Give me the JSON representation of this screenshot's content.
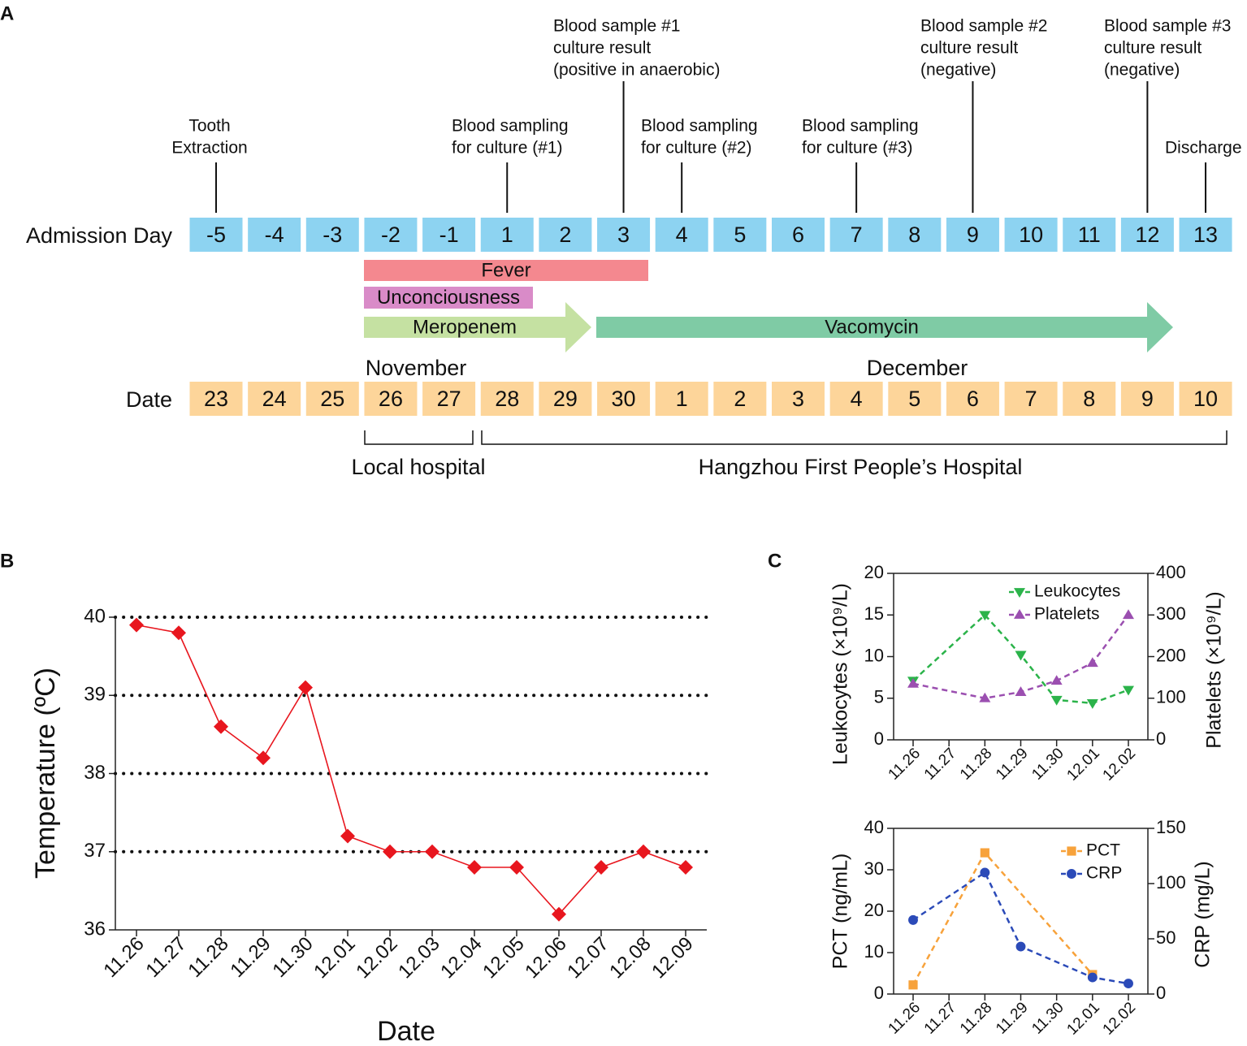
{
  "panel_a": {
    "panel_label": "A",
    "events": [
      {
        "lines": [
          "Tooth",
          "Extraction"
        ]
      },
      {
        "lines": [
          "Blood sampling",
          "for culture (#1)"
        ]
      },
      {
        "lines": [
          "Blood sample #1",
          "culture result",
          "(positive in anaerobic)"
        ]
      },
      {
        "lines": [
          "Blood sampling",
          "for culture (#2)"
        ]
      },
      {
        "lines": [
          "Blood sampling",
          "for culture (#3)"
        ]
      },
      {
        "lines": [
          "Blood sample #2",
          "culture result",
          "(negative)"
        ]
      },
      {
        "lines": [
          "Blood sample #3",
          "culture result",
          "(negative)"
        ]
      },
      {
        "lines": [
          "Discharge"
        ]
      }
    ],
    "admission_label": "Admission Day",
    "admission_days": [
      "-5",
      "-4",
      "-3",
      "-2",
      "-1",
      "1",
      "2",
      "3",
      "4",
      "5",
      "6",
      "7",
      "8",
      "9",
      "10",
      "11",
      "12",
      "13"
    ],
    "bars": [
      "Fever",
      "Unconciousness",
      "Meropenem",
      "Vacomycin"
    ],
    "months": [
      "November",
      "December"
    ],
    "date_label": "Date",
    "dates": [
      "23",
      "24",
      "25",
      "26",
      "27",
      "28",
      "29",
      "30",
      "1",
      "2",
      "3",
      "4",
      "5",
      "6",
      "7",
      "8",
      "9",
      "10"
    ],
    "hospitals": [
      "Local hospital",
      "Hangzhou First People’s Hospital"
    ]
  },
  "chart_data": [
    {
      "type": "line",
      "panel_label": "B",
      "x_label": "Date",
      "y_label": "Temperature (ºC)",
      "categories": [
        "11.26",
        "11.27",
        "11.28",
        "11.29",
        "11.30",
        "12.01",
        "12.02",
        "12.03",
        "12.04",
        "12.05",
        "12.06",
        "12.07",
        "12.08",
        "12.09"
      ],
      "series": [
        {
          "color": "#e8161e",
          "marker": "diamond",
          "linestyle": "solid",
          "x": [
            "11.26",
            "11.27",
            "11.28",
            "11.29",
            "11.30",
            "12.01",
            "12.02",
            "12.03",
            "12.04",
            "12.05",
            "12.06",
            "12.07",
            "12.08",
            "12.09"
          ],
          "values": [
            39.9,
            39.8,
            38.6,
            38.2,
            39.1,
            37.2,
            37.0,
            37.0,
            36.8,
            36.8,
            36.2,
            36.8,
            37.0,
            36.8
          ]
        }
      ],
      "ylim": [
        36,
        40
      ],
      "yticks": [
        36,
        37,
        38,
        39,
        40
      ],
      "grid": true
    },
    {
      "type": "line",
      "panel_label": "C",
      "y_label": "Leukocytes (×10⁹/L)",
      "y2_label": "Platelets (×10⁹/L)",
      "categories": [
        "11.26",
        "11.27",
        "11.28",
        "11.29",
        "11.30",
        "12.01",
        "12.02"
      ],
      "series": [
        {
          "name": "Leukocytes",
          "color": "#2bb34a",
          "marker": "triangle-down",
          "linestyle": "dashed",
          "x": [
            "11.26",
            "11.28",
            "11.29",
            "11.30",
            "12.01",
            "12.02"
          ],
          "values": [
            7.1,
            15.0,
            10.2,
            4.8,
            4.4,
            6.0
          ]
        },
        {
          "name": "Platelets",
          "color": "#9b4fb0",
          "marker": "triangle-up",
          "linestyle": "dashed",
          "axis": "y2",
          "x": [
            "11.26",
            "11.28",
            "11.29",
            "11.30",
            "12.01",
            "12.02"
          ],
          "values": [
            135,
            100,
            115,
            142,
            185,
            300
          ]
        }
      ],
      "ylim": [
        0,
        20
      ],
      "yticks": [
        0,
        5,
        10,
        15,
        20
      ],
      "y2lim": [
        0,
        400
      ],
      "y2ticks": [
        0,
        100,
        200,
        300,
        400
      ],
      "grid": false,
      "legend": "upper right"
    },
    {
      "type": "line",
      "y_label": "PCT (ng/mL)",
      "y2_label": "CRP (mg/L)",
      "categories": [
        "11.26",
        "11.27",
        "11.28",
        "11.29",
        "11.30",
        "12.01",
        "12.02"
      ],
      "series": [
        {
          "name": "PCT",
          "color": "#f7a23b",
          "marker": "square",
          "linestyle": "dashed",
          "x": [
            "11.26",
            "11.28",
            "12.01"
          ],
          "values": [
            2.2,
            34.1,
            4.7
          ]
        },
        {
          "name": "CRP",
          "color": "#2b4ab8",
          "marker": "circle",
          "linestyle": "dashed",
          "axis": "y2",
          "x": [
            "11.26",
            "11.28",
            "11.29",
            "12.01",
            "12.02"
          ],
          "values": [
            67,
            110,
            43,
            15,
            9.5
          ]
        }
      ],
      "ylim": [
        0,
        40
      ],
      "yticks": [
        0,
        10,
        20,
        30,
        40
      ],
      "y2lim": [
        0,
        150
      ],
      "y2ticks": [
        0,
        50,
        100,
        150
      ],
      "grid": false,
      "legend": "upper right"
    }
  ]
}
